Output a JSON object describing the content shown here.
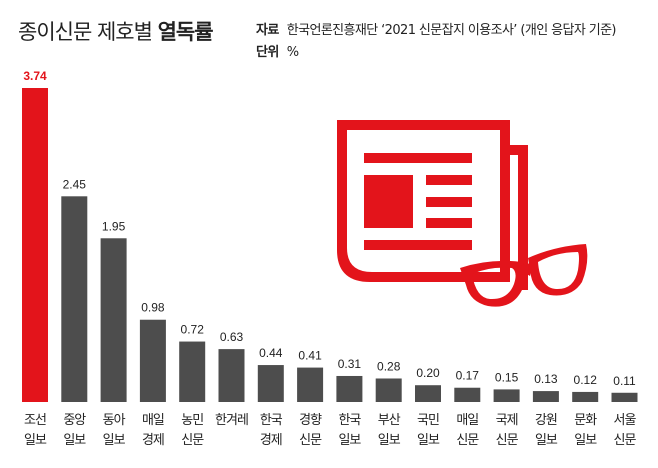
{
  "header": {
    "title_regular": "종이신문 제호별 ",
    "title_bold": "열독률",
    "source_label": "자료",
    "source_text": "한국언론진흥재단 ‘2021 신문잡지 이용조사’ (개인 응답자 기준)",
    "unit_label": "단위",
    "unit_text": "%"
  },
  "icon": "newspaper-with-glasses-icon",
  "chart_data": {
    "type": "bar",
    "title": "종이신문 제호별 열독률",
    "categories": [
      [
        "조선",
        "일보"
      ],
      [
        "중앙",
        "일보"
      ],
      [
        "동아",
        "일보"
      ],
      [
        "매일",
        "경제"
      ],
      [
        "농민",
        "신문"
      ],
      [
        "한겨레",
        ""
      ],
      [
        "한국",
        "경제"
      ],
      [
        "경향",
        "신문"
      ],
      [
        "한국",
        "일보"
      ],
      [
        "부산",
        "일보"
      ],
      [
        "국민",
        "일보"
      ],
      [
        "매일",
        "신문"
      ],
      [
        "국제",
        "신문"
      ],
      [
        "강원",
        "일보"
      ],
      [
        "문화",
        "일보"
      ],
      [
        "서울",
        "신문"
      ]
    ],
    "values": [
      3.74,
      2.45,
      1.95,
      0.98,
      0.72,
      0.63,
      0.44,
      0.41,
      0.31,
      0.28,
      0.2,
      0.17,
      0.15,
      0.13,
      0.12,
      0.11
    ],
    "value_labels": [
      "3.74",
      "2.45",
      "1.95",
      "0.98",
      "0.72",
      "0.63",
      "0.44",
      "0.41",
      "0.31",
      "0.28",
      "0.20",
      "0.17",
      "0.15",
      "0.13",
      "0.12",
      "0.11"
    ],
    "ylim": [
      0,
      3.74
    ],
    "grid": false,
    "colors": {
      "highlight": "#e3141b",
      "default": "#4d4d4d"
    }
  }
}
